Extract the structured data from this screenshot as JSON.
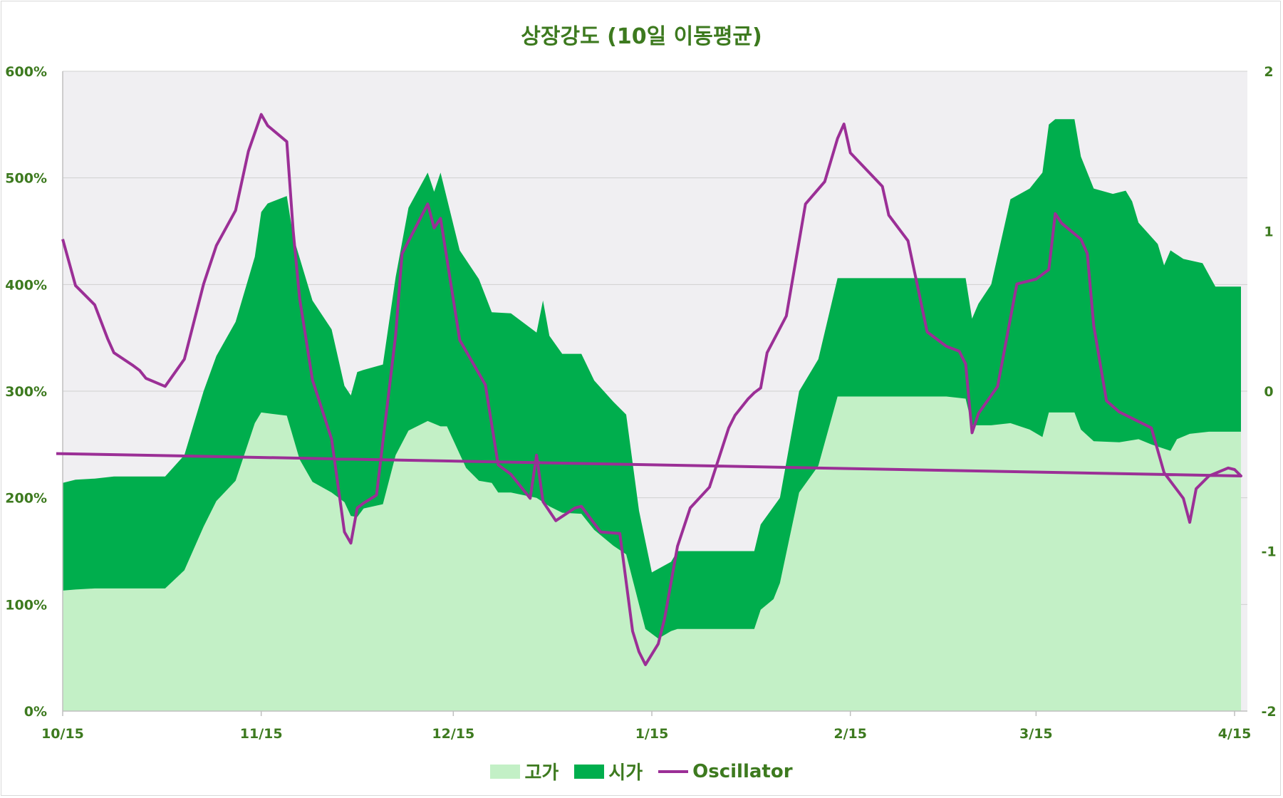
{
  "chart_data": {
    "type": "area",
    "title": "상장강도 (10일 이동평균)",
    "x_ticks": [
      "10/15",
      "11/15",
      "12/15",
      "1/15",
      "2/15",
      "3/15",
      "4/15"
    ],
    "y_left": {
      "ticks": [
        "0%",
        "100%",
        "200%",
        "300%",
        "400%",
        "500%",
        "600%"
      ],
      "ylim": [
        0,
        600
      ]
    },
    "y_right": {
      "ticks": [
        "-2",
        "-1",
        "0",
        "1",
        "2"
      ],
      "ylim": [
        -2,
        2
      ]
    },
    "grid": true,
    "legend_position": "bottom",
    "dates": [
      "10/15",
      "10/16",
      "10/17",
      "10/18",
      "10/19",
      "10/20",
      "10/21",
      "10/22",
      "10/23",
      "10/24",
      "10/25",
      "10/26",
      "10/27",
      "10/28",
      "10/29",
      "10/30",
      "10/31",
      "11/1",
      "11/2",
      "11/3",
      "11/4",
      "11/5",
      "11/6",
      "11/7",
      "11/8",
      "11/9",
      "11/10",
      "11/11",
      "11/12",
      "11/13",
      "11/14",
      "11/15",
      "11/16",
      "11/17",
      "11/18",
      "11/19",
      "11/20",
      "11/21",
      "11/22",
      "11/23",
      "11/24",
      "11/25",
      "11/26",
      "11/27",
      "11/28",
      "11/29",
      "11/30",
      "12/1",
      "12/2",
      "12/3",
      "12/4",
      "12/5",
      "12/6",
      "12/7",
      "12/8",
      "12/9",
      "12/10",
      "12/11",
      "12/12",
      "12/13",
      "12/14",
      "12/15",
      "12/16",
      "12/17",
      "12/18",
      "12/19",
      "12/20",
      "12/21",
      "12/22",
      "12/23",
      "12/24",
      "12/25",
      "12/26",
      "12/27",
      "12/28",
      "12/29",
      "12/30",
      "12/31",
      "1/1",
      "1/2",
      "1/3",
      "1/4",
      "1/5",
      "1/6",
      "1/7",
      "1/8",
      "1/9",
      "1/10",
      "1/11",
      "1/12",
      "1/13",
      "1/14",
      "1/15",
      "1/16",
      "1/17",
      "1/18",
      "1/19",
      "1/20",
      "1/21",
      "1/22",
      "1/23",
      "1/24",
      "1/25",
      "1/26",
      "1/27",
      "1/28",
      "1/29",
      "1/30",
      "1/31",
      "2/1",
      "2/2",
      "2/3",
      "2/4",
      "2/5",
      "2/6",
      "2/7",
      "2/8",
      "2/9",
      "2/10",
      "2/11",
      "2/12",
      "2/13",
      "2/14",
      "2/15",
      "2/16",
      "2/17",
      "2/18",
      "2/19",
      "2/20",
      "2/21",
      "2/22",
      "2/23",
      "2/24",
      "2/25",
      "2/26",
      "2/27",
      "2/28",
      "2/29",
      "3/1",
      "3/2",
      "3/3",
      "3/4",
      "3/5",
      "3/6",
      "3/7",
      "3/8",
      "3/9",
      "3/10",
      "3/11",
      "3/12",
      "3/13",
      "3/14",
      "3/15",
      "3/16",
      "3/17",
      "3/18",
      "3/19",
      "3/20",
      "3/21",
      "3/22",
      "3/23",
      "3/24",
      "3/25",
      "3/26",
      "3/27",
      "3/28",
      "3/29",
      "3/30",
      "3/31",
      "4/1",
      "4/2",
      "4/3",
      "4/4",
      "4/5",
      "4/6",
      "4/7",
      "4/8",
      "4/9",
      "4/10",
      "4/11",
      "4/12",
      "4/13",
      "4/14",
      "4/15",
      "4/16",
      "4/17"
    ],
    "series": [
      {
        "name": "고가",
        "kind": "area",
        "color": "#c3f0c6",
        "points": [
          [
            "10/15",
            113
          ],
          [
            "10/17",
            114
          ],
          [
            "10/20",
            115
          ],
          [
            "10/23",
            115
          ],
          [
            "10/27",
            115
          ],
          [
            "10/31",
            115
          ],
          [
            "11/3",
            132
          ],
          [
            "11/6",
            173
          ],
          [
            "11/8",
            197
          ],
          [
            "11/11",
            216
          ],
          [
            "11/14",
            270
          ],
          [
            "11/15",
            280
          ],
          [
            "11/19",
            277
          ],
          [
            "11/21",
            236
          ],
          [
            "11/23",
            215
          ],
          [
            "11/26",
            205
          ],
          [
            "11/28",
            196
          ],
          [
            "11/29",
            183
          ],
          [
            "11/30",
            182
          ],
          [
            "12/1",
            190
          ],
          [
            "12/4",
            194
          ],
          [
            "12/6",
            240
          ],
          [
            "12/8",
            263
          ],
          [
            "12/11",
            272
          ],
          [
            "12/13",
            267
          ],
          [
            "12/14",
            267
          ],
          [
            "12/17",
            228
          ],
          [
            "12/19",
            216
          ],
          [
            "12/21",
            214
          ],
          [
            "12/22",
            205
          ],
          [
            "12/24",
            205
          ],
          [
            "12/28",
            200
          ],
          [
            "12/30",
            192
          ],
          [
            "1/1",
            186
          ],
          [
            "1/4",
            185
          ],
          [
            "1/6",
            170
          ],
          [
            "1/9",
            155
          ],
          [
            "1/11",
            147
          ],
          [
            "1/13",
            100
          ],
          [
            "1/14",
            77
          ],
          [
            "1/16",
            68
          ],
          [
            "1/18",
            75
          ],
          [
            "1/19",
            77
          ],
          [
            "1/31",
            77
          ],
          [
            "2/1",
            95
          ],
          [
            "2/3",
            105
          ],
          [
            "2/4",
            120
          ],
          [
            "2/7",
            205
          ],
          [
            "2/10",
            230
          ],
          [
            "2/13",
            295
          ],
          [
            "2/15",
            295
          ],
          [
            "2/26",
            295
          ],
          [
            "3/1",
            295
          ],
          [
            "3/4",
            293
          ],
          [
            "3/5",
            268
          ],
          [
            "3/8",
            268
          ],
          [
            "3/11",
            270
          ],
          [
            "3/14",
            264
          ],
          [
            "3/16",
            257
          ],
          [
            "3/17",
            280
          ],
          [
            "3/21",
            280
          ],
          [
            "3/22",
            264
          ],
          [
            "3/24",
            253
          ],
          [
            "3/28",
            252
          ],
          [
            "3/31",
            255
          ],
          [
            "4/2",
            250
          ],
          [
            "4/4",
            246
          ],
          [
            "4/5",
            244
          ],
          [
            "4/6",
            255
          ],
          [
            "4/8",
            260
          ],
          [
            "4/11",
            262
          ],
          [
            "4/16",
            262
          ]
        ]
      },
      {
        "name": "시가",
        "kind": "area",
        "color": "#00ae4d",
        "points": [
          [
            "10/15",
            214
          ],
          [
            "10/17",
            217
          ],
          [
            "10/20",
            218
          ],
          [
            "10/23",
            220
          ],
          [
            "10/27",
            220
          ],
          [
            "10/31",
            220
          ],
          [
            "11/3",
            240
          ],
          [
            "11/6",
            300
          ],
          [
            "11/8",
            333
          ],
          [
            "11/11",
            365
          ],
          [
            "11/14",
            426
          ],
          [
            "11/15",
            468
          ],
          [
            "11/16",
            476
          ],
          [
            "11/19",
            483
          ],
          [
            "11/20",
            445
          ],
          [
            "11/21",
            425
          ],
          [
            "11/23",
            385
          ],
          [
            "11/26",
            358
          ],
          [
            "11/28",
            305
          ],
          [
            "11/29",
            296
          ],
          [
            "11/30",
            318
          ],
          [
            "12/1",
            320
          ],
          [
            "12/4",
            325
          ],
          [
            "12/6",
            407
          ],
          [
            "12/8",
            472
          ],
          [
            "12/11",
            505
          ],
          [
            "12/12",
            487
          ],
          [
            "12/13",
            505
          ],
          [
            "12/16",
            432
          ],
          [
            "12/19",
            405
          ],
          [
            "12/21",
            374
          ],
          [
            "12/24",
            373
          ],
          [
            "12/28",
            355
          ],
          [
            "12/29",
            385
          ],
          [
            "12/30",
            352
          ],
          [
            "1/1",
            335
          ],
          [
            "1/4",
            335
          ],
          [
            "1/6",
            310
          ],
          [
            "1/9",
            290
          ],
          [
            "1/11",
            278
          ],
          [
            "1/13",
            188
          ],
          [
            "1/15",
            130
          ],
          [
            "1/18",
            140
          ],
          [
            "1/19",
            150
          ],
          [
            "1/31",
            150
          ],
          [
            "2/1",
            175
          ],
          [
            "2/4",
            200
          ],
          [
            "2/7",
            300
          ],
          [
            "2/10",
            330
          ],
          [
            "2/13",
            406
          ],
          [
            "2/15",
            406
          ],
          [
            "2/26",
            406
          ],
          [
            "3/1",
            406
          ],
          [
            "3/4",
            406
          ],
          [
            "3/5",
            368
          ],
          [
            "3/6",
            382
          ],
          [
            "3/8",
            400
          ],
          [
            "3/11",
            480
          ],
          [
            "3/14",
            490
          ],
          [
            "3/16",
            505
          ],
          [
            "3/17",
            550
          ],
          [
            "3/18",
            555
          ],
          [
            "3/21",
            555
          ],
          [
            "3/22",
            520
          ],
          [
            "3/24",
            490
          ],
          [
            "3/27",
            485
          ],
          [
            "3/29",
            488
          ],
          [
            "3/30",
            478
          ],
          [
            "3/31",
            458
          ],
          [
            "4/3",
            438
          ],
          [
            "4/4",
            418
          ],
          [
            "4/5",
            432
          ],
          [
            "4/7",
            424
          ],
          [
            "4/10",
            420
          ],
          [
            "4/12",
            398
          ],
          [
            "4/16",
            398
          ]
        ]
      },
      {
        "name": "Oscillator",
        "kind": "line",
        "color": "#9b2f96",
        "points": [
          [
            "10/15",
            0.95
          ],
          [
            "10/17",
            0.66
          ],
          [
            "10/20",
            0.54
          ],
          [
            "10/22",
            0.33
          ],
          [
            "10/23",
            0.24
          ],
          [
            "10/26",
            0.16
          ],
          [
            "10/27",
            0.13
          ],
          [
            "10/28",
            0.08
          ],
          [
            "10/31",
            0.03
          ],
          [
            "11/3",
            0.2
          ],
          [
            "11/6",
            0.67
          ],
          [
            "11/8",
            0.91
          ],
          [
            "11/11",
            1.13
          ],
          [
            "11/13",
            1.5
          ],
          [
            "11/15",
            1.73
          ],
          [
            "11/16",
            1.66
          ],
          [
            "11/19",
            1.56
          ],
          [
            "11/20",
            1.0
          ],
          [
            "11/21",
            0.58
          ],
          [
            "11/23",
            0.07
          ],
          [
            "11/26",
            -0.3
          ],
          [
            "11/28",
            -0.88
          ],
          [
            "11/29",
            -0.95
          ],
          [
            "11/30",
            -0.73
          ],
          [
            "12/1",
            -0.7
          ],
          [
            "12/3",
            -0.65
          ],
          [
            "12/6",
            0.35
          ],
          [
            "12/7",
            0.86
          ],
          [
            "12/11",
            1.17
          ],
          [
            "12/12",
            1.02
          ],
          [
            "12/13",
            1.08
          ],
          [
            "12/16",
            0.32
          ],
          [
            "12/20",
            0.04
          ],
          [
            "12/22",
            -0.46
          ],
          [
            "12/24",
            -0.52
          ],
          [
            "12/27",
            -0.67
          ],
          [
            "12/28",
            -0.4
          ],
          [
            "12/29",
            -0.69
          ],
          [
            "12/31",
            -0.81
          ],
          [
            "1/3",
            -0.73
          ],
          [
            "1/4",
            -0.72
          ],
          [
            "1/7",
            -0.88
          ],
          [
            "1/10",
            -0.89
          ],
          [
            "1/12",
            -1.5
          ],
          [
            "1/13",
            -1.63
          ],
          [
            "1/14",
            -1.71
          ],
          [
            "1/16",
            -1.58
          ],
          [
            "1/17",
            -1.42
          ],
          [
            "1/19",
            -0.97
          ],
          [
            "1/21",
            -0.73
          ],
          [
            "1/24",
            -0.6
          ],
          [
            "1/27",
            -0.23
          ],
          [
            "1/28",
            -0.15
          ],
          [
            "1/30",
            -0.05
          ],
          [
            "1/31",
            -0.01
          ],
          [
            "2/1",
            0.02
          ],
          [
            "2/2",
            0.24
          ],
          [
            "2/5",
            0.47
          ],
          [
            "2/8",
            1.17
          ],
          [
            "2/11",
            1.31
          ],
          [
            "2/13",
            1.58
          ],
          [
            "2/14",
            1.67
          ],
          [
            "2/15",
            1.49
          ],
          [
            "2/20",
            1.28
          ],
          [
            "2/21",
            1.1
          ],
          [
            "2/24",
            0.94
          ],
          [
            "2/27",
            0.37
          ],
          [
            "3/1",
            0.28
          ],
          [
            "3/3",
            0.25
          ],
          [
            "3/4",
            0.17
          ],
          [
            "3/5",
            -0.26
          ],
          [
            "3/6",
            -0.14
          ],
          [
            "3/9",
            0.03
          ],
          [
            "3/12",
            0.67
          ],
          [
            "3/15",
            0.7
          ],
          [
            "3/17",
            0.76
          ],
          [
            "3/18",
            1.11
          ],
          [
            "3/19",
            1.05
          ],
          [
            "3/22",
            0.95
          ],
          [
            "3/23",
            0.86
          ],
          [
            "3/24",
            0.41
          ],
          [
            "3/26",
            -0.06
          ],
          [
            "3/28",
            -0.13
          ],
          [
            "4/1",
            -0.21
          ],
          [
            "4/2",
            -0.23
          ],
          [
            "4/4",
            -0.51
          ],
          [
            "4/7",
            -0.67
          ],
          [
            "4/8",
            -0.82
          ],
          [
            "4/9",
            -0.61
          ],
          [
            "4/11",
            -0.53
          ],
          [
            "4/14",
            -0.48
          ],
          [
            "4/15",
            -0.49
          ],
          [
            "4/16",
            -0.53
          ],
          [
            "4/18",
            -0.39
          ]
        ]
      }
    ]
  }
}
